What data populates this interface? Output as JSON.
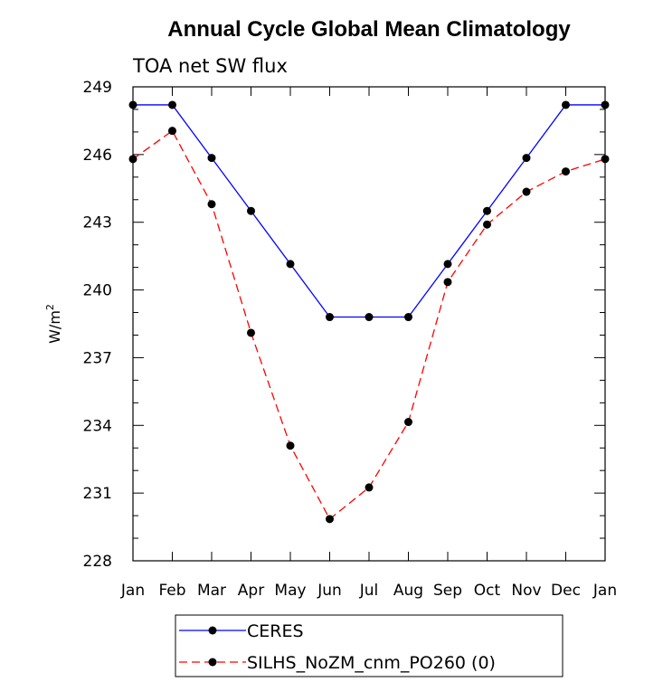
{
  "chart_data": {
    "type": "line",
    "title": "Annual Cycle Global Mean Climatology",
    "subtitle": "TOA net SW flux",
    "xlabel": "",
    "ylabel": "W/m",
    "ylabel_superscript": "2",
    "categories": [
      "Jan",
      "Feb",
      "Mar",
      "Apr",
      "May",
      "Jun",
      "Jul",
      "Aug",
      "Sep",
      "Oct",
      "Nov",
      "Dec",
      "Jan"
    ],
    "ylim": [
      228,
      249
    ],
    "yticks": [
      228,
      231,
      234,
      237,
      240,
      243,
      246,
      249
    ],
    "grid": false,
    "legend_position": "bottom",
    "series": [
      {
        "name": "CERES",
        "color": "#0000ff",
        "dash": "solid",
        "values": [
          248.2,
          248.2,
          245.85,
          243.5,
          241.15,
          238.8,
          238.8,
          238.8,
          241.15,
          243.5,
          245.85,
          248.2,
          248.2
        ]
      },
      {
        "name": "SILHS_NoZM_cnm_PO260 (0)",
        "color": "#ff0000",
        "dash": "dashed",
        "values": [
          245.8,
          247.05,
          243.8,
          238.1,
          233.1,
          229.85,
          231.25,
          234.15,
          240.35,
          242.9,
          244.35,
          245.25,
          245.8
        ]
      }
    ]
  }
}
